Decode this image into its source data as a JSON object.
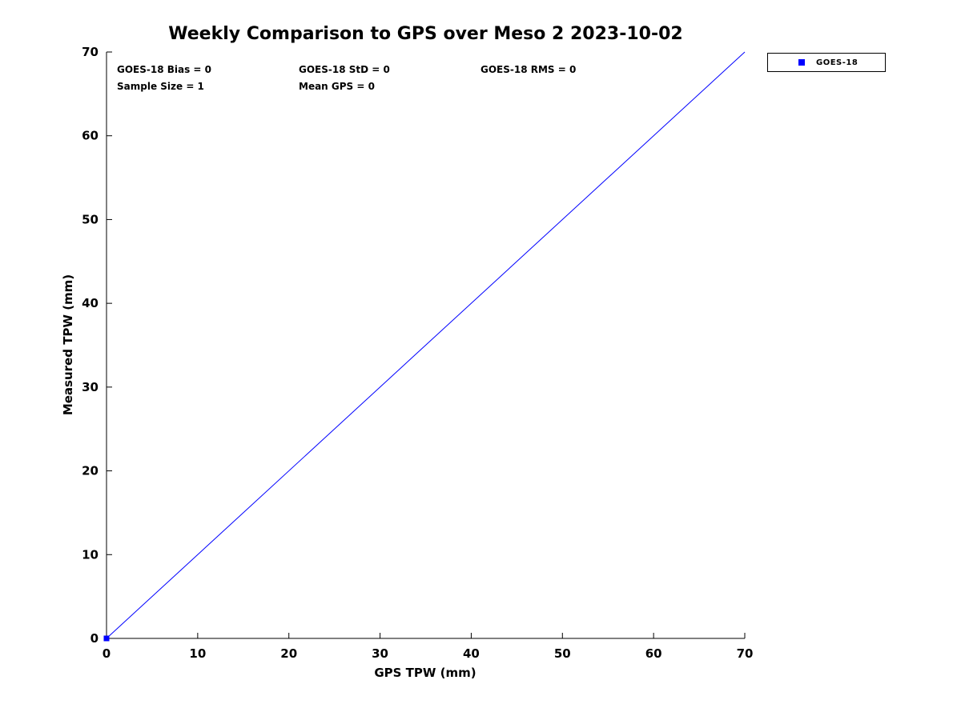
{
  "chart_data": {
    "type": "scatter",
    "title": "Weekly Comparison to GPS over Meso 2 2023-10-02",
    "xlabel": "GPS TPW (mm)",
    "ylabel": "Measured TPW (mm)",
    "xlim": [
      0,
      70
    ],
    "ylim": [
      0,
      70
    ],
    "xticks": [
      0,
      10,
      20,
      30,
      40,
      50,
      60,
      70
    ],
    "yticks": [
      0,
      10,
      20,
      30,
      40,
      50,
      60,
      70
    ],
    "grid": false,
    "series": [
      {
        "name": "GOES-18",
        "marker": "square",
        "color": "#0000ff",
        "points": [
          {
            "x": 0,
            "y": 0
          }
        ]
      }
    ],
    "reference_line": {
      "from": [
        0,
        0
      ],
      "to": [
        70,
        70
      ],
      "color": "#0000ff"
    },
    "legend": {
      "position": "top-right",
      "entries": [
        {
          "label": "GOES-18",
          "color": "#0000ff",
          "marker": "square"
        }
      ]
    },
    "annotations": [
      {
        "text": "GOES-18 Bias = 0"
      },
      {
        "text": "GOES-18 StD = 0"
      },
      {
        "text": "GOES-18 RMS = 0"
      },
      {
        "text": "Sample Size = 1"
      },
      {
        "text": "Mean GPS = 0"
      }
    ]
  }
}
